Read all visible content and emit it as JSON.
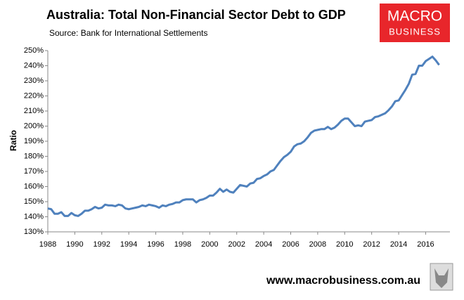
{
  "chart_data": {
    "type": "line",
    "title": "Australia: Total Non-Financial Sector Debt to GDP",
    "subtitle": "Source: Bank for International Settlements",
    "y_label": "Ratio",
    "color": "#4f81bd",
    "x": [
      1988,
      1988.25,
      1988.5,
      1988.75,
      1989,
      1989.25,
      1989.5,
      1989.75,
      1990,
      1990.25,
      1990.5,
      1990.75,
      1991,
      1991.25,
      1991.5,
      1991.75,
      1992,
      1992.25,
      1992.5,
      1992.75,
      1993,
      1993.25,
      1993.5,
      1993.75,
      1994,
      1994.25,
      1994.5,
      1994.75,
      1995,
      1995.25,
      1995.5,
      1995.75,
      1996,
      1996.25,
      1996.5,
      1996.75,
      1997,
      1997.25,
      1997.5,
      1997.75,
      1998,
      1998.25,
      1998.5,
      1998.75,
      1999,
      1999.25,
      1999.5,
      1999.75,
      2000,
      2000.25,
      2000.5,
      2000.75,
      2001,
      2001.25,
      2001.5,
      2001.75,
      2002,
      2002.25,
      2002.5,
      2002.75,
      2003,
      2003.25,
      2003.5,
      2003.75,
      2004,
      2004.25,
      2004.5,
      2004.75,
      2005,
      2005.25,
      2005.5,
      2005.75,
      2006,
      2006.25,
      2006.5,
      2006.75,
      2007,
      2007.25,
      2007.5,
      2007.75,
      2008,
      2008.25,
      2008.5,
      2008.75,
      2009,
      2009.25,
      2009.5,
      2009.75,
      2010,
      2010.25,
      2010.5,
      2010.75,
      2011,
      2011.25,
      2011.5,
      2011.75,
      2012,
      2012.25,
      2012.5,
      2012.75,
      2013,
      2013.25,
      2013.5,
      2013.75,
      2014,
      2014.25,
      2014.5,
      2014.75,
      2015,
      2015.25,
      2015.5,
      2015.75,
      2016,
      2016.25,
      2016.5,
      2016.75,
      2017
    ],
    "values": [
      145.5,
      145,
      142,
      142,
      143,
      140.5,
      140.5,
      142.5,
      141,
      140.5,
      142,
      144,
      144,
      145,
      146.5,
      145.5,
      146,
      148,
      147.5,
      147.5,
      147,
      148,
      147.5,
      145.5,
      145,
      145.5,
      146,
      146.5,
      147.5,
      147,
      148,
      147.5,
      147,
      146,
      147.5,
      147,
      148,
      148.5,
      149.5,
      149.5,
      151,
      151.5,
      151.5,
      151.5,
      149.5,
      151,
      151.5,
      152.5,
      154,
      154,
      156,
      158.5,
      156.5,
      158,
      156.5,
      156,
      158.5,
      161,
      160.5,
      160,
      162,
      162.5,
      165,
      165.5,
      167,
      168,
      170,
      171,
      174,
      177,
      179.5,
      181,
      183,
      186.5,
      188,
      188.5,
      190,
      192.5,
      195.5,
      197,
      197.5,
      198,
      198,
      199.5,
      198,
      199,
      201,
      203.5,
      205,
      205,
      202.5,
      200,
      200.5,
      200,
      203,
      203.5,
      204,
      206,
      206.5,
      207.5,
      208.5,
      210.5,
      213,
      216.5,
      217,
      220.5,
      224,
      228,
      234,
      234.5,
      240,
      240,
      243,
      244.5,
      246,
      243.5,
      240.5
    ],
    "xlim": [
      1988,
      2017.8
    ],
    "xticks": [
      1988,
      1990,
      1992,
      1994,
      1996,
      1998,
      2000,
      2002,
      2004,
      2006,
      2008,
      2010,
      2012,
      2014,
      2016
    ],
    "ylim": [
      130,
      250
    ],
    "yticks": [
      {
        "value": 130,
        "label": "130%"
      },
      {
        "value": 140,
        "label": "140%"
      },
      {
        "value": 150,
        "label": "150%"
      },
      {
        "value": 160,
        "label": "160%"
      },
      {
        "value": 170,
        "label": "170%"
      },
      {
        "value": 180,
        "label": "180%"
      },
      {
        "value": 190,
        "label": "190%"
      },
      {
        "value": 200,
        "label": "200%"
      },
      {
        "value": 210,
        "label": "210%"
      },
      {
        "value": 220,
        "label": "220%"
      },
      {
        "value": 230,
        "label": "230%"
      },
      {
        "value": 240,
        "label": "240%"
      },
      {
        "value": 250,
        "label": "250%"
      }
    ],
    "grid": false
  },
  "logo": {
    "line1": "MACRO",
    "line2": "BUSINESS"
  },
  "footer": "www.macrobusiness.com.au"
}
